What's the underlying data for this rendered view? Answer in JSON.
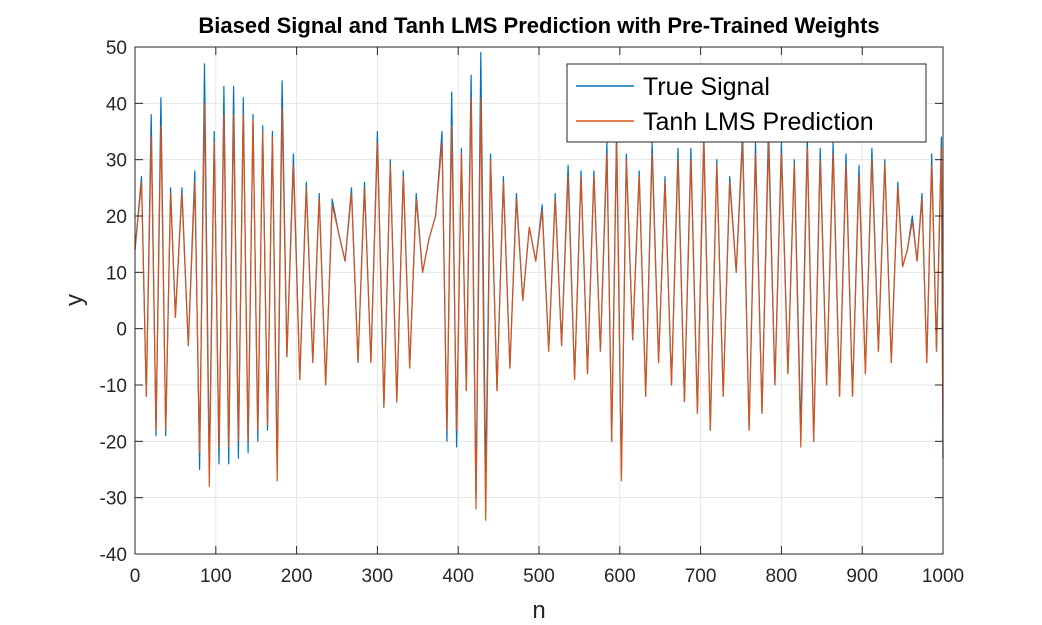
{
  "chart_data": {
    "type": "line",
    "title": "Biased Signal and Tanh LMS Prediction with Pre-Trained Weights",
    "xlabel": "n",
    "ylabel": "y",
    "xlim": [
      0,
      1000
    ],
    "ylim": [
      -40,
      50
    ],
    "xticks": [
      0,
      100,
      200,
      300,
      400,
      500,
      600,
      700,
      800,
      900,
      1000
    ],
    "yticks": [
      -40,
      -30,
      -20,
      -10,
      0,
      10,
      20,
      30,
      40,
      50
    ],
    "grid": true,
    "legend_position": "top-right",
    "series": [
      {
        "name": "True Signal",
        "color": "#0072BD",
        "x": [
          0,
          8,
          14,
          20,
          26,
          32,
          38,
          44,
          50,
          58,
          66,
          74,
          80,
          86,
          92,
          98,
          104,
          110,
          116,
          122,
          128,
          134,
          140,
          146,
          152,
          158,
          164,
          170,
          176,
          182,
          188,
          196,
          204,
          212,
          220,
          228,
          236,
          244,
          252,
          260,
          268,
          276,
          284,
          292,
          300,
          308,
          316,
          324,
          332,
          340,
          348,
          356,
          364,
          372,
          380,
          386,
          392,
          398,
          404,
          410,
          416,
          422,
          428,
          434,
          440,
          448,
          456,
          464,
          472,
          480,
          488,
          496,
          504,
          512,
          520,
          528,
          536,
          544,
          552,
          560,
          568,
          576,
          584,
          590,
          596,
          602,
          608,
          616,
          624,
          632,
          640,
          648,
          656,
          664,
          672,
          680,
          688,
          696,
          704,
          712,
          720,
          728,
          736,
          744,
          752,
          760,
          768,
          776,
          784,
          792,
          800,
          808,
          816,
          824,
          832,
          840,
          848,
          856,
          864,
          872,
          880,
          888,
          896,
          904,
          912,
          920,
          928,
          936,
          944,
          950,
          956,
          962,
          968,
          974,
          980,
          986,
          992,
          998,
          1000
        ],
        "y": [
          14,
          27,
          -12,
          38,
          -19,
          41,
          -19,
          25,
          2,
          25,
          -3,
          28,
          -25,
          47,
          -25,
          35,
          -24,
          43,
          -24,
          43,
          -23,
          41,
          -22,
          38,
          -20,
          36,
          -18,
          35,
          -25,
          44,
          -5,
          31,
          -9,
          26,
          -6,
          24,
          -10,
          23,
          17,
          12,
          25,
          -6,
          26,
          -6,
          35,
          -14,
          30,
          -13,
          28,
          -7,
          24,
          10,
          16,
          20,
          35,
          -20,
          42,
          -21,
          32,
          -11,
          45,
          -30,
          49,
          -27,
          31,
          -11,
          27,
          -7,
          24,
          5,
          18,
          12,
          22,
          -4,
          24,
          -3,
          29,
          -9,
          28,
          -8,
          28,
          -4,
          33,
          -20,
          36,
          -26,
          31,
          -2,
          28,
          -12,
          33,
          -6,
          27,
          -10,
          32,
          -13,
          32,
          -15,
          35,
          -18,
          30,
          -12,
          27,
          10,
          35,
          -18,
          33,
          -15,
          36,
          -10,
          33,
          -8,
          30,
          -18,
          34,
          -20,
          32,
          -10,
          33,
          -12,
          31,
          -12,
          29,
          -8,
          32,
          -4,
          30,
          -6,
          26,
          11,
          14,
          20,
          12,
          24,
          -6,
          31,
          -4,
          34,
          -23
        ]
      },
      {
        "name": "Tanh LMS Prediction",
        "color": "#D95319",
        "x": [
          0,
          8,
          14,
          20,
          26,
          32,
          38,
          44,
          50,
          58,
          66,
          74,
          80,
          86,
          92,
          98,
          104,
          110,
          116,
          122,
          128,
          134,
          140,
          146,
          152,
          158,
          164,
          170,
          176,
          182,
          188,
          196,
          204,
          212,
          220,
          228,
          236,
          244,
          252,
          260,
          268,
          276,
          284,
          292,
          300,
          308,
          316,
          324,
          332,
          340,
          348,
          356,
          364,
          372,
          380,
          386,
          392,
          398,
          404,
          410,
          416,
          422,
          428,
          434,
          440,
          448,
          456,
          464,
          472,
          480,
          488,
          496,
          504,
          512,
          520,
          528,
          536,
          544,
          552,
          560,
          568,
          576,
          584,
          590,
          596,
          602,
          608,
          616,
          624,
          632,
          640,
          648,
          656,
          664,
          672,
          680,
          688,
          696,
          704,
          712,
          720,
          728,
          736,
          744,
          752,
          760,
          768,
          776,
          784,
          792,
          800,
          808,
          816,
          824,
          832,
          840,
          848,
          856,
          864,
          872,
          880,
          888,
          896,
          904,
          912,
          920,
          928,
          936,
          944,
          950,
          956,
          962,
          968,
          974,
          980,
          986,
          992,
          998,
          1000
        ],
        "y": [
          14,
          26,
          -12,
          34,
          -18,
          36,
          -18,
          24,
          2,
          24,
          -3,
          26,
          -22,
          40,
          -28,
          33,
          -21,
          38,
          -21,
          38,
          -20,
          38,
          -20,
          37,
          -18,
          35,
          -17,
          34,
          -27,
          39,
          -5,
          29,
          -9,
          25,
          -6,
          23,
          -10,
          22,
          17,
          12,
          24,
          -6,
          25,
          -6,
          33,
          -14,
          29,
          -13,
          27,
          -7,
          23,
          10,
          16,
          20,
          33,
          -18,
          36,
          -18,
          31,
          -11,
          41,
          -32,
          41,
          -34,
          30,
          -11,
          26,
          -7,
          23,
          5,
          18,
          12,
          21,
          -4,
          23,
          -3,
          27,
          -9,
          27,
          -8,
          27,
          -4,
          31,
          -20,
          34,
          -27,
          30,
          -2,
          27,
          -12,
          31,
          -6,
          26,
          -10,
          30,
          -13,
          30,
          -15,
          33,
          -18,
          29,
          -12,
          26,
          10,
          33,
          -18,
          31,
          -15,
          33,
          -10,
          31,
          -8,
          29,
          -21,
          32,
          -20,
          30,
          -10,
          31,
          -12,
          29,
          -12,
          27,
          -8,
          30,
          -4,
          29,
          -6,
          25,
          11,
          14,
          19,
          12,
          23,
          -6,
          29,
          -4,
          32,
          -23
        ]
      }
    ]
  }
}
